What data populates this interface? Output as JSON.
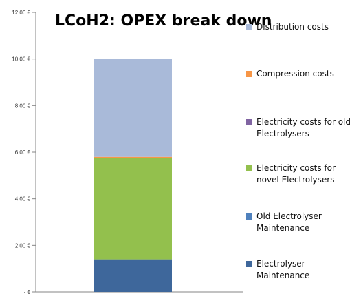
{
  "chart_data": {
    "type": "bar",
    "stacked": true,
    "title": "LCoH2: OPEX break down",
    "categories": [
      ""
    ],
    "ylim": [
      0,
      12
    ],
    "yticks": [
      {
        "value": 0,
        "label": "-   €"
      },
      {
        "value": 2,
        "label": "2,00 €"
      },
      {
        "value": 4,
        "label": "4,00 €"
      },
      {
        "value": 6,
        "label": "6,00 €"
      },
      {
        "value": 8,
        "label": "8,00 €"
      },
      {
        "value": 10,
        "label": "10,00 €"
      },
      {
        "value": 12,
        "label": "12,00 €"
      }
    ],
    "grid": false,
    "legend_position": "right",
    "series": [
      {
        "name": "Electrolyser Maintenance",
        "values": [
          1.4
        ],
        "color": "#3e679b"
      },
      {
        "name": "Old Electrolyser Maintenance",
        "values": [
          0.0
        ],
        "color": "#4f81bd"
      },
      {
        "name": "Electricity costs for novel Electrolysers",
        "values": [
          4.35
        ],
        "color": "#93c04d"
      },
      {
        "name": "Electricity costs for old Electrolysers",
        "values": [
          0.0
        ],
        "color": "#8064a2"
      },
      {
        "name": "Compression costs",
        "values": [
          0.05
        ],
        "color": "#f79646"
      },
      {
        "name": "Distribution costs",
        "values": [
          4.2
        ],
        "color": "#a9bad9"
      }
    ]
  }
}
